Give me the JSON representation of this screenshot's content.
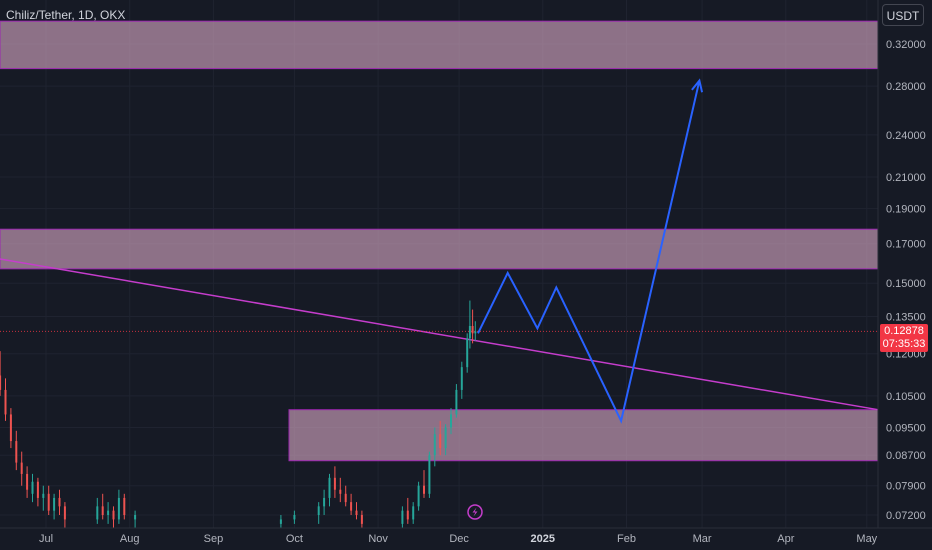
{
  "header": {
    "symbol_title": "Chiliz/Tether, 1D, OKX",
    "currency_label": "USDT"
  },
  "last_price": {
    "price": "0.12878",
    "countdown": "07:35:33"
  },
  "colors": {
    "background": "#161a25",
    "zone_fill": "#d6a8c3",
    "zone_border": "#9c27b0",
    "trendline": "#c53dcc",
    "projection": "#2962ff",
    "candle_up": "#26a69a",
    "candle_down": "#ef5350",
    "last_price_tag": "#f23645"
  },
  "chart_data": {
    "type": "candlestick",
    "y_scale": "log",
    "x_tick_labels": [
      "Jul",
      "Aug",
      "Sep",
      "Oct",
      "Nov",
      "Dec",
      "2025",
      "Feb",
      "Mar",
      "Apr",
      "May"
    ],
    "x_tick_dates": [
      "2024-07-01",
      "2024-08-01",
      "2024-09-01",
      "2024-10-01",
      "2024-11-01",
      "2024-12-01",
      "2025-01-01",
      "2025-02-01",
      "2025-03-01",
      "2025-04-01",
      "2025-05-01"
    ],
    "y_tick_labels": [
      "0.32000",
      "0.28000",
      "0.24000",
      "0.21000",
      "0.19000",
      "0.17000",
      "0.15000",
      "0.13500",
      "0.12000",
      "0.10500",
      "0.09500",
      "0.08700",
      "0.07900",
      "0.07200"
    ],
    "last_price": 0.12878,
    "zones": [
      {
        "start": "2024-06-10",
        "end": "2025-05-10",
        "low": 0.296,
        "high": 0.344
      },
      {
        "start": "2024-06-10",
        "end": "2025-05-10",
        "low": 0.157,
        "high": 0.178
      },
      {
        "start": "2024-09-29",
        "end": "2025-05-10",
        "low": 0.0855,
        "high": 0.1005
      }
    ],
    "trendline": [
      {
        "date": "2024-06-10",
        "price": 0.162
      },
      {
        "date": "2025-05-10",
        "price": 0.1005
      }
    ],
    "projection_path": [
      {
        "date": "2024-12-08",
        "price": 0.128
      },
      {
        "date": "2024-12-19",
        "price": 0.155
      },
      {
        "date": "2024-12-30",
        "price": 0.13
      },
      {
        "date": "2025-01-06",
        "price": 0.148
      },
      {
        "date": "2025-01-30",
        "price": 0.097
      },
      {
        "date": "2025-02-28",
        "price": 0.285
      }
    ],
    "candles": [
      {
        "date": "2024-06-14",
        "o": 0.112,
        "h": 0.121,
        "l": 0.105,
        "c": 0.107
      },
      {
        "date": "2024-06-16",
        "o": 0.107,
        "h": 0.111,
        "l": 0.097,
        "c": 0.099
      },
      {
        "date": "2024-06-18",
        "o": 0.099,
        "h": 0.101,
        "l": 0.089,
        "c": 0.091
      },
      {
        "date": "2024-06-20",
        "o": 0.091,
        "h": 0.094,
        "l": 0.083,
        "c": 0.085
      },
      {
        "date": "2024-06-22",
        "o": 0.085,
        "h": 0.088,
        "l": 0.079,
        "c": 0.082
      },
      {
        "date": "2024-06-24",
        "o": 0.082,
        "h": 0.084,
        "l": 0.076,
        "c": 0.078
      },
      {
        "date": "2024-06-26",
        "o": 0.077,
        "h": 0.082,
        "l": 0.075,
        "c": 0.08
      },
      {
        "date": "2024-06-28",
        "o": 0.08,
        "h": 0.081,
        "l": 0.074,
        "c": 0.076
      },
      {
        "date": "2024-06-30",
        "o": 0.076,
        "h": 0.079,
        "l": 0.073,
        "c": 0.077
      },
      {
        "date": "2024-07-02",
        "o": 0.077,
        "h": 0.079,
        "l": 0.072,
        "c": 0.073
      },
      {
        "date": "2024-07-04",
        "o": 0.073,
        "h": 0.077,
        "l": 0.071,
        "c": 0.076
      },
      {
        "date": "2024-07-06",
        "o": 0.076,
        "h": 0.078,
        "l": 0.072,
        "c": 0.074
      },
      {
        "date": "2024-07-08",
        "o": 0.074,
        "h": 0.075,
        "l": 0.069,
        "c": 0.071
      },
      {
        "date": "2024-07-20",
        "o": 0.071,
        "h": 0.076,
        "l": 0.07,
        "c": 0.074
      },
      {
        "date": "2024-07-22",
        "o": 0.074,
        "h": 0.077,
        "l": 0.071,
        "c": 0.072
      },
      {
        "date": "2024-07-24",
        "o": 0.072,
        "h": 0.075,
        "l": 0.07,
        "c": 0.073
      },
      {
        "date": "2024-07-26",
        "o": 0.073,
        "h": 0.074,
        "l": 0.069,
        "c": 0.071
      },
      {
        "date": "2024-07-28",
        "o": 0.071,
        "h": 0.078,
        "l": 0.07,
        "c": 0.076
      },
      {
        "date": "2024-07-30",
        "o": 0.076,
        "h": 0.077,
        "l": 0.071,
        "c": 0.072
      },
      {
        "date": "2024-08-03",
        "o": 0.071,
        "h": 0.073,
        "l": 0.069,
        "c": 0.072
      },
      {
        "date": "2024-09-26",
        "o": 0.07,
        "h": 0.072,
        "l": 0.069,
        "c": 0.071
      },
      {
        "date": "2024-10:01",
        "o": 0.071,
        "h": 0.073,
        "l": 0.07,
        "c": 0.072
      },
      {
        "date": "2024-10-10",
        "o": 0.072,
        "h": 0.075,
        "l": 0.07,
        "c": 0.074
      },
      {
        "date": "2024-10-12",
        "o": 0.074,
        "h": 0.078,
        "l": 0.072,
        "c": 0.076
      },
      {
        "date": "2024-10-14",
        "o": 0.076,
        "h": 0.082,
        "l": 0.074,
        "c": 0.081
      },
      {
        "date": "2024-10-16",
        "o": 0.081,
        "h": 0.084,
        "l": 0.076,
        "c": 0.078
      },
      {
        "date": "2024-10-18",
        "o": 0.078,
        "h": 0.081,
        "l": 0.075,
        "c": 0.077
      },
      {
        "date": "2024-10-20",
        "o": 0.077,
        "h": 0.079,
        "l": 0.074,
        "c": 0.075
      },
      {
        "date": "2024-10-22",
        "o": 0.075,
        "h": 0.077,
        "l": 0.072,
        "c": 0.073
      },
      {
        "date": "2024-10-24",
        "o": 0.073,
        "h": 0.075,
        "l": 0.071,
        "c": 0.072
      },
      {
        "date": "2024-10-26",
        "o": 0.072,
        "h": 0.073,
        "l": 0.069,
        "c": 0.07
      },
      {
        "date": "2024-11-10",
        "o": 0.07,
        "h": 0.074,
        "l": 0.069,
        "c": 0.073
      },
      {
        "date": "2024-11-12",
        "o": 0.073,
        "h": 0.076,
        "l": 0.07,
        "c": 0.071
      },
      {
        "date": "2024-11-14",
        "o": 0.071,
        "h": 0.075,
        "l": 0.07,
        "c": 0.074
      },
      {
        "date": "2024-11-16",
        "o": 0.074,
        "h": 0.08,
        "l": 0.073,
        "c": 0.079
      },
      {
        "date": "2024-11-18",
        "o": 0.079,
        "h": 0.083,
        "l": 0.076,
        "c": 0.077
      },
      {
        "date": "2024-11-20",
        "o": 0.077,
        "h": 0.088,
        "l": 0.076,
        "c": 0.087
      },
      {
        "date": "2024-11-22",
        "o": 0.087,
        "h": 0.095,
        "l": 0.084,
        "c": 0.093
      },
      {
        "date": "2024-11-24",
        "o": 0.093,
        "h": 0.097,
        "l": 0.087,
        "c": 0.089
      },
      {
        "date": "2024-11-26",
        "o": 0.089,
        "h": 0.096,
        "l": 0.087,
        "c": 0.095
      },
      {
        "date": "2024-11-28",
        "o": 0.095,
        "h": 0.101,
        "l": 0.093,
        "c": 0.099
      },
      {
        "date": "2024-11-30",
        "o": 0.099,
        "h": 0.109,
        "l": 0.098,
        "c": 0.107
      },
      {
        "date": "2024-12-02",
        "o": 0.107,
        "h": 0.117,
        "l": 0.104,
        "c": 0.115
      },
      {
        "date": "2024-12-04",
        "o": 0.115,
        "h": 0.128,
        "l": 0.113,
        "c": 0.126
      },
      {
        "date": "2024-12-05",
        "o": 0.126,
        "h": 0.142,
        "l": 0.122,
        "c": 0.131
      },
      {
        "date": "2024-12-06",
        "o": 0.131,
        "h": 0.138,
        "l": 0.124,
        "c": 0.128
      },
      {
        "date": "2024-12-07",
        "o": 0.128,
        "h": 0.133,
        "l": 0.125,
        "c": 0.12878
      }
    ]
  }
}
